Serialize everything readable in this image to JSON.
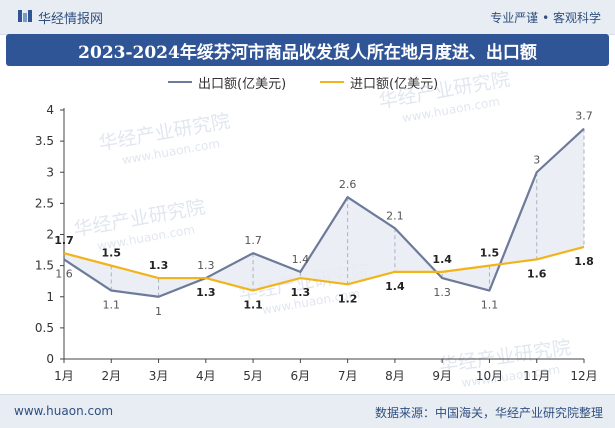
{
  "header": {
    "brand": "华经情报网",
    "tagline": "专业严谨 • 客观科学"
  },
  "title": "2023-2024年绥芬河市商品收发货人所在地月度进、出口额",
  "footer": {
    "website": "www.huaon.com",
    "source": "数据来源：中国海关，华经产业研究院整理"
  },
  "watermark": {
    "text": "华经产业研究院",
    "url": "www.huaon.com"
  },
  "colors": {
    "export": "#6d7a99",
    "import": "#f2b41b",
    "band": "#e8ebf2",
    "title_bg": "#2f5597"
  },
  "chart_data": {
    "type": "line",
    "categories": [
      "1月",
      "2月",
      "3月",
      "4月",
      "5月",
      "6月",
      "7月",
      "8月",
      "9月",
      "10月",
      "11月",
      "12月"
    ],
    "series": [
      {
        "name": "出口额(亿美元)",
        "values": [
          1.6,
          1.1,
          1.0,
          1.3,
          1.7,
          1.4,
          2.6,
          2.1,
          1.3,
          1.1,
          3.0,
          3.7
        ]
      },
      {
        "name": "进口额(亿美元)",
        "values": [
          1.7,
          1.5,
          1.3,
          1.3,
          1.1,
          1.3,
          1.2,
          1.4,
          1.4,
          1.5,
          1.6,
          1.8
        ]
      }
    ],
    "export_labels": [
      "1.6",
      "1.1",
      "1",
      "1.3",
      "1.7",
      "1.4",
      "2.6",
      "2.1",
      "1.3",
      "1.1",
      "3",
      "3.7"
    ],
    "import_labels": [
      "1.7",
      "1.5",
      "1.3",
      "1.3",
      "1.1",
      "1.3",
      "1.2",
      "1.4",
      "1.4",
      "1.5",
      "1.6",
      "1.8"
    ],
    "y_ticks": [
      "0",
      "0.5",
      "1",
      "1.5",
      "2",
      "2.5",
      "3",
      "3.5",
      "4"
    ],
    "ylim": [
      0,
      4
    ],
    "legend_position": "top-center",
    "grid": false
  }
}
